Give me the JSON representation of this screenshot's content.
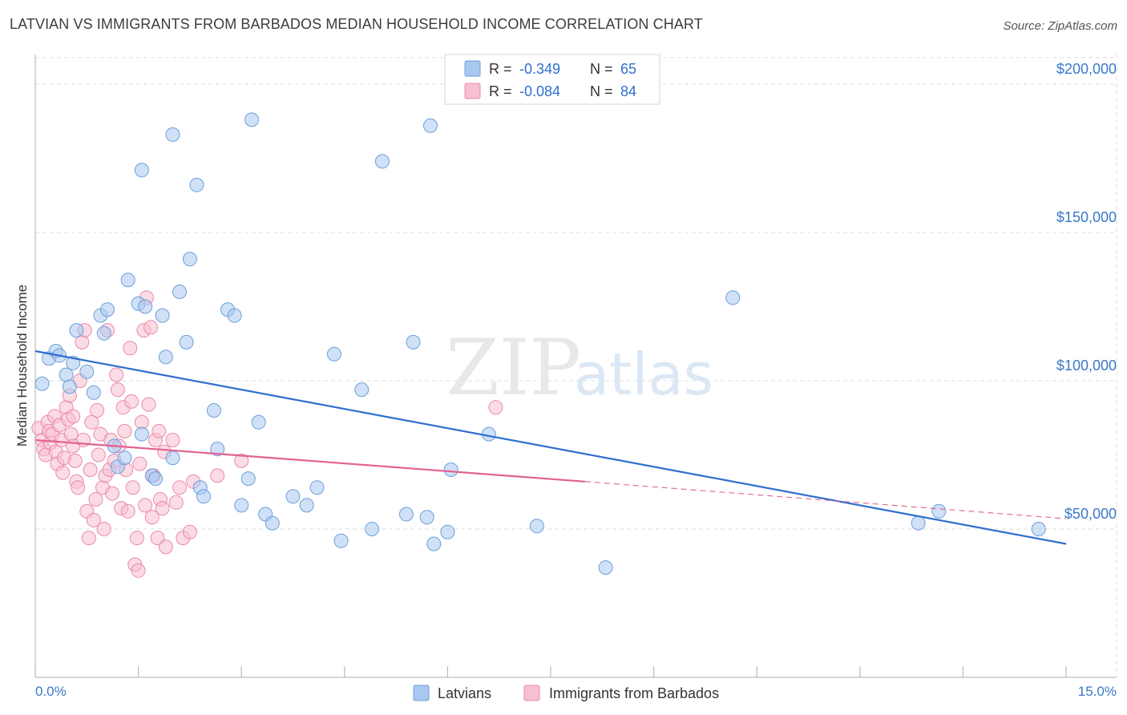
{
  "header": {
    "title": "LATVIAN VS IMMIGRANTS FROM BARBADOS MEDIAN HOUSEHOLD INCOME CORRELATION CHART",
    "source": "Source: ZipAtlas.com"
  },
  "watermark": {
    "zip": "ZIP",
    "atlas": "atlas"
  },
  "colors": {
    "latvians_fill": "#a9c8f0",
    "latvians_stroke": "#6d9fd8",
    "latvians_line": "#2f6fd0",
    "barbados_fill": "#f7bfd0",
    "barbados_stroke": "#ea8aab",
    "barbados_line": "#e2628f",
    "axis_value": "#3a78c9",
    "grid": "#dedede"
  },
  "legend": {
    "rows": [
      {
        "r_label": "R =",
        "r_value": "-0.349",
        "n_label": "N =",
        "n_value": "65"
      },
      {
        "r_label": "R =",
        "r_value": "-0.084",
        "n_label": "N =",
        "n_value": "84"
      }
    ]
  },
  "bottom_legend": {
    "items": [
      "Latvians",
      "Immigrants from Barbados"
    ]
  },
  "chart_data": {
    "type": "scatter",
    "title": "LATVIAN VS IMMIGRANTS FROM BARBADOS MEDIAN HOUSEHOLD INCOME CORRELATION CHART",
    "xlabel": "",
    "ylabel": "Median Household Income",
    "xlim": [
      0,
      15
    ],
    "ylim": [
      0,
      210000
    ],
    "x_tick_labels": [
      "0.0%",
      "15.0%"
    ],
    "y_ticks": [
      50000,
      100000,
      150000,
      200000
    ],
    "y_tick_labels": [
      "$50,000",
      "$100,000",
      "$150,000",
      "$200,000"
    ],
    "grid": true,
    "legend_position": "top-center",
    "series": [
      {
        "name": "Latvians",
        "r": -0.349,
        "n": 65,
        "trend": {
          "x": [
            0,
            15
          ],
          "y": [
            110000,
            45000
          ]
        },
        "points": [
          [
            0.1,
            99000
          ],
          [
            0.2,
            107500
          ],
          [
            0.3,
            110000
          ],
          [
            0.35,
            108500
          ],
          [
            0.45,
            102000
          ],
          [
            0.5,
            98000
          ],
          [
            0.55,
            106000
          ],
          [
            0.6,
            117000
          ],
          [
            0.75,
            103000
          ],
          [
            0.85,
            96000
          ],
          [
            0.95,
            122000
          ],
          [
            1.0,
            116000
          ],
          [
            1.05,
            124000
          ],
          [
            1.15,
            78000
          ],
          [
            1.2,
            71000
          ],
          [
            1.3,
            74000
          ],
          [
            1.35,
            134000
          ],
          [
            1.5,
            126000
          ],
          [
            1.6,
            125000
          ],
          [
            1.55,
            82000
          ],
          [
            1.7,
            68000
          ],
          [
            1.75,
            67000
          ],
          [
            1.85,
            122000
          ],
          [
            1.9,
            108000
          ],
          [
            2.0,
            74000
          ],
          [
            2.0,
            183000
          ],
          [
            1.55,
            171000
          ],
          [
            2.1,
            130000
          ],
          [
            2.2,
            113000
          ],
          [
            2.25,
            141000
          ],
          [
            2.35,
            166000
          ],
          [
            2.4,
            64000
          ],
          [
            2.45,
            61000
          ],
          [
            2.6,
            90000
          ],
          [
            2.65,
            77000
          ],
          [
            2.8,
            124000
          ],
          [
            2.9,
            122000
          ],
          [
            3.0,
            58000
          ],
          [
            3.1,
            67000
          ],
          [
            3.15,
            188000
          ],
          [
            3.25,
            86000
          ],
          [
            3.35,
            55000
          ],
          [
            3.45,
            52000
          ],
          [
            3.75,
            61000
          ],
          [
            3.95,
            58000
          ],
          [
            4.1,
            64000
          ],
          [
            4.35,
            109000
          ],
          [
            4.45,
            46000
          ],
          [
            4.75,
            97000
          ],
          [
            4.9,
            50000
          ],
          [
            5.05,
            174000
          ],
          [
            5.4,
            55000
          ],
          [
            5.5,
            113000
          ],
          [
            5.7,
            54000
          ],
          [
            5.75,
            186000
          ],
          [
            5.8,
            45000
          ],
          [
            6.0,
            49000
          ],
          [
            6.05,
            70000
          ],
          [
            6.6,
            82000
          ],
          [
            7.3,
            51000
          ],
          [
            8.3,
            37000
          ],
          [
            10.15,
            128000
          ],
          [
            12.85,
            52000
          ],
          [
            13.15,
            56000
          ],
          [
            14.6,
            50000
          ]
        ]
      },
      {
        "name": "Immigrants from Barbados",
        "r": -0.084,
        "n": 84,
        "trend": {
          "x": [
            0,
            8
          ],
          "y": [
            80000,
            66000
          ]
        },
        "trend_dashed": {
          "x": [
            8,
            15
          ],
          "y": [
            66000,
            53500
          ]
        },
        "points": [
          [
            0.05,
            84000
          ],
          [
            0.1,
            80000
          ],
          [
            0.12,
            77000
          ],
          [
            0.15,
            75000
          ],
          [
            0.18,
            86000
          ],
          [
            0.2,
            83000
          ],
          [
            0.22,
            79000
          ],
          [
            0.25,
            82000
          ],
          [
            0.28,
            88000
          ],
          [
            0.3,
            76000
          ],
          [
            0.32,
            72000
          ],
          [
            0.35,
            85000
          ],
          [
            0.38,
            80000
          ],
          [
            0.4,
            69000
          ],
          [
            0.42,
            74000
          ],
          [
            0.45,
            91000
          ],
          [
            0.48,
            87000
          ],
          [
            0.5,
            95000
          ],
          [
            0.52,
            82000
          ],
          [
            0.55,
            78000
          ],
          [
            0.55,
            88000
          ],
          [
            0.58,
            73000
          ],
          [
            0.6,
            66000
          ],
          [
            0.62,
            64000
          ],
          [
            0.65,
            100000
          ],
          [
            0.68,
            113000
          ],
          [
            0.7,
            80000
          ],
          [
            0.72,
            117000
          ],
          [
            0.75,
            56000
          ],
          [
            0.78,
            47000
          ],
          [
            0.8,
            70000
          ],
          [
            0.82,
            86000
          ],
          [
            0.85,
            53000
          ],
          [
            0.88,
            60000
          ],
          [
            0.9,
            90000
          ],
          [
            0.92,
            75000
          ],
          [
            0.95,
            82000
          ],
          [
            0.98,
            64000
          ],
          [
            1.0,
            50000
          ],
          [
            1.02,
            68000
          ],
          [
            1.05,
            117000
          ],
          [
            1.08,
            70000
          ],
          [
            1.1,
            80000
          ],
          [
            1.12,
            62000
          ],
          [
            1.15,
            73000
          ],
          [
            1.18,
            102000
          ],
          [
            1.2,
            97000
          ],
          [
            1.22,
            78000
          ],
          [
            1.25,
            57000
          ],
          [
            1.28,
            91000
          ],
          [
            1.3,
            83000
          ],
          [
            1.32,
            70000
          ],
          [
            1.35,
            56000
          ],
          [
            1.38,
            111000
          ],
          [
            1.4,
            93000
          ],
          [
            1.42,
            64000
          ],
          [
            1.45,
            38000
          ],
          [
            1.48,
            47000
          ],
          [
            1.5,
            36000
          ],
          [
            1.52,
            72000
          ],
          [
            1.55,
            86000
          ],
          [
            1.58,
            117000
          ],
          [
            1.6,
            58000
          ],
          [
            1.62,
            128000
          ],
          [
            1.65,
            92000
          ],
          [
            1.68,
            118000
          ],
          [
            1.7,
            54000
          ],
          [
            1.72,
            68000
          ],
          [
            1.75,
            80000
          ],
          [
            1.78,
            47000
          ],
          [
            1.8,
            83000
          ],
          [
            1.82,
            60000
          ],
          [
            1.85,
            57000
          ],
          [
            1.88,
            76000
          ],
          [
            1.9,
            44000
          ],
          [
            2.0,
            80000
          ],
          [
            2.05,
            59000
          ],
          [
            2.1,
            64000
          ],
          [
            2.15,
            47000
          ],
          [
            2.25,
            49000
          ],
          [
            2.3,
            66000
          ],
          [
            2.65,
            68000
          ],
          [
            3.0,
            73000
          ],
          [
            6.7,
            91000
          ]
        ]
      }
    ]
  }
}
